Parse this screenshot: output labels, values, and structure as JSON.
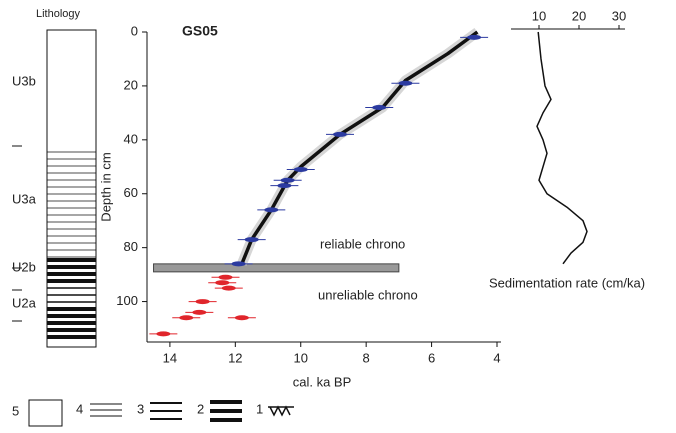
{
  "lithology": {
    "title": "Lithology",
    "units": [
      "U3b",
      "U3a",
      "U2b",
      "U2a"
    ],
    "legend": [
      "5",
      "4",
      "3",
      "2",
      "1"
    ]
  },
  "chart_data": [
    {
      "type": "line",
      "title": "GS05",
      "x_label": "cal. ka BP",
      "y_label": "Depth in cm",
      "xlim": [
        14.7,
        4
      ],
      "ylim": [
        0,
        115
      ],
      "xticks": [
        14,
        12,
        10,
        8,
        6,
        4
      ],
      "yticks": [
        0,
        20,
        40,
        60,
        80,
        100
      ],
      "annotations": [
        "reliable chrono",
        "unreliable chrono"
      ],
      "boundary": {
        "depth": 87.5,
        "from": 14.5,
        "to": 7
      },
      "series": [
        {
          "color": "#111111",
          "x": [
            4.6,
            5.5,
            6.8,
            7.5,
            8.8,
            10.0,
            10.4,
            10.9,
            11.5,
            11.8
          ],
          "values": [
            0,
            8,
            18,
            28,
            38,
            50,
            55,
            66,
            77,
            86
          ]
        },
        {
          "color": "#2b3aa0",
          "x": [
            4.7,
            6.8,
            7.6,
            8.8,
            10.0,
            10.4,
            10.5,
            10.9,
            11.5,
            11.9
          ],
          "values": [
            2,
            19,
            28,
            38,
            51,
            55,
            57,
            66,
            77,
            86
          ]
        },
        {
          "color": "#e0252b",
          "x": [
            12.3,
            12.4,
            12.2,
            13.0,
            13.1,
            13.5,
            11.8,
            14.2
          ],
          "values": [
            91,
            93,
            95,
            100,
            104,
            106,
            106,
            112
          ]
        }
      ]
    },
    {
      "type": "line",
      "x_label": "Sedimentation rate (cm/ka)",
      "xlim": [
        3,
        31.5
      ],
      "ylim": [
        0,
        115
      ],
      "xticks": [
        10,
        20,
        30
      ],
      "series": [
        {
          "color": "#111111",
          "x": [
            9.8,
            10.5,
            11.5,
            13,
            11,
            9.5,
            11,
            12,
            11,
            10,
            12,
            17,
            21,
            22,
            21,
            18,
            16
          ],
          "values": [
            0,
            10,
            20,
            25,
            30,
            35,
            40,
            45,
            50,
            55,
            60,
            65,
            70,
            74,
            78,
            82,
            86
          ]
        }
      ]
    }
  ]
}
